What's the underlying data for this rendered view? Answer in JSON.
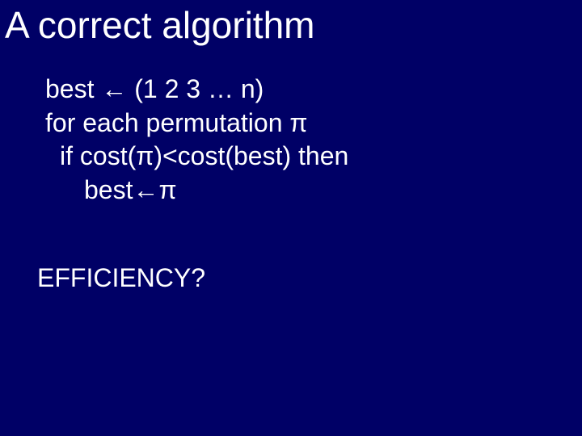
{
  "background_color": "#000066",
  "text_color": "#ffffff",
  "font_family": "Arial, Helvetica, sans-serif",
  "title": {
    "text": "A correct algorithm",
    "fontsize": 46
  },
  "pseudocode": {
    "fontsize": 32,
    "lines": [
      {
        "text": "best ← (1 2 3 … n)",
        "indent": 0
      },
      {
        "text": "for each permutation π",
        "indent": 0
      },
      {
        "text": "if cost(π)<cost(best) then",
        "indent": 1
      },
      {
        "text": "best←π",
        "indent": 2
      }
    ]
  },
  "question": {
    "text": "EFFICIENCY?",
    "fontsize": 32
  }
}
